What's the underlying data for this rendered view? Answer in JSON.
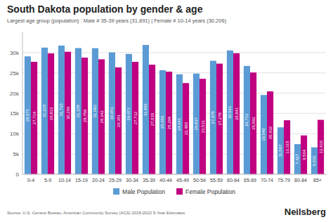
{
  "chart_data": {
    "type": "bar",
    "title": "South Dakota population by gender & age",
    "subtitle": "Largest age group (population) : Male # 35-39 years (31,891) | Female # 10-14 years (30,206)",
    "annotations": [
      "Source: U.S. Census Bureau, American Community Survey (ACS) 2018-2022 5-Year Estimates",
      "Neilsberg"
    ],
    "categories": [
      "0-4",
      "5-9",
      "10-14",
      "15-19",
      "20-24",
      "25-29",
      "30-34",
      "35-39",
      "40-44",
      "45-49",
      "50-54",
      "55-59",
      "60-64",
      "65-69",
      "70-74",
      "75-79",
      "80-84",
      "85+"
    ],
    "series": [
      {
        "name": "Male Population",
        "color": "#5B9BD5",
        "values": [
          29071,
          31225,
          31736,
          31108,
          31083,
          30051,
          29671,
          31891,
          25656,
          24641,
          24837,
          27978,
          30541,
          26712,
          19540,
          11567,
          7427,
          6632
        ],
        "value_labels": [
          "29,071",
          "31,225",
          "31,736",
          "31,108",
          "31,083",
          "30,051",
          "29,671",
          "31,891",
          "25,656",
          "24,641",
          "24,837",
          "27,978",
          "30,541",
          "26,712",
          "19,540",
          "11,567",
          "7,427",
          "6,632"
        ]
      },
      {
        "name": "Female Population",
        "color": "#C00080",
        "values": [
          27714,
          29813,
          30206,
          28759,
          28342,
          26351,
          27712,
          27018,
          25294,
          22480,
          23531,
          27278,
          29841,
          25092,
          20432,
          13315,
          9564,
          13416
        ],
        "value_labels": [
          "27,714",
          "29,813",
          "30,206",
          "28,759",
          "28,342",
          "26,351",
          "27,712",
          "27,018",
          "25,294",
          "22,480",
          "23,531",
          "27,278",
          "29,841",
          "25,092",
          "20,432",
          "13,315",
          "9,564",
          "13,416"
        ]
      }
    ],
    "ylim": [
      0,
      35000
    ],
    "yticks": [
      0,
      {
        "value": 5000,
        "label": "5k"
      },
      {
        "value": 10000,
        "label": "10k"
      },
      {
        "value": 15000,
        "label": "15k"
      },
      {
        "value": 20000,
        "label": "20k"
      },
      {
        "value": 25000,
        "label": "25k"
      },
      {
        "value": 30000,
        "label": "30k"
      }
    ],
    "grid": true,
    "legend": "bottom",
    "data_labels": true
  }
}
